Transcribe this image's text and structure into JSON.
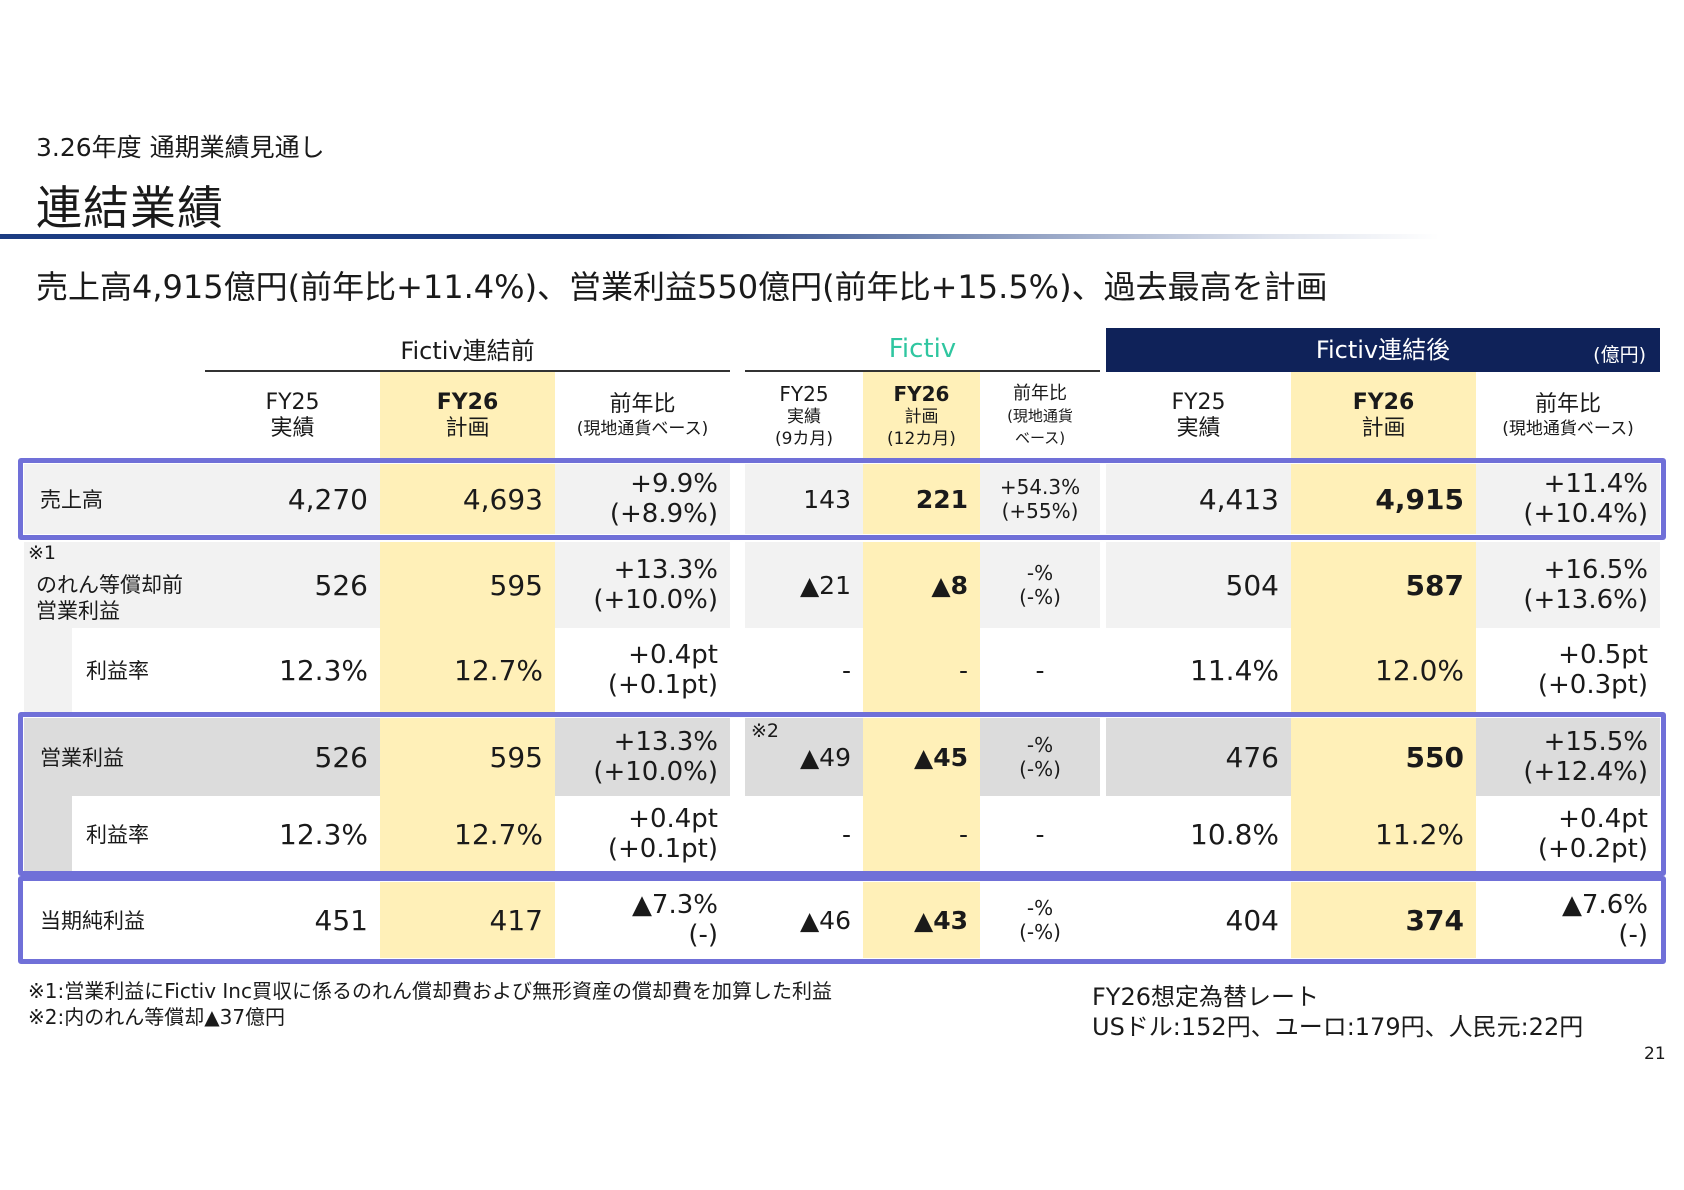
{
  "section": "3.26年度 通期業績見通し",
  "title": "連結業績",
  "headline": "売上高4,915億円(前年比+11.4%)、営業利益550億円(前年比+15.5%)、過去最高を計画",
  "groups": {
    "before": "Fictiv連結前",
    "fictiv": "Fictiv",
    "after": "Fictiv連結後",
    "unit": "(億円)"
  },
  "colors": {
    "fictiv_green": "#2fc6a0",
    "navy": "#0f2259",
    "highlight": "#fff0b8",
    "box": "#7070d8"
  },
  "headers": {
    "before": {
      "fy25": "FY25",
      "fy25_sub": "実績",
      "fy26": "FY26",
      "fy26_sub": "計画",
      "yoy": "前年比",
      "yoy_sub": "(現地通貨ベース)"
    },
    "fictiv": {
      "fy25": "FY25",
      "fy25_sub": "実績",
      "fy25_sub2": "(9カ月)",
      "fy26": "FY26",
      "fy26_sub": "計画",
      "fy26_sub2": "(12カ月)",
      "yoy": "前年比",
      "yoy_sub": "(現地通貨",
      "yoy_sub2": "ベース)"
    },
    "after": {
      "fy25": "FY25",
      "fy25_sub": "実績",
      "fy26": "FY26",
      "fy26_sub": "計画",
      "yoy": "前年比",
      "yoy_sub": "(現地通貨ベース)"
    }
  },
  "rows": {
    "sales": {
      "label": "売上高",
      "b25": "4,270",
      "b26": "4,693",
      "byoy": "+9.9%",
      "byoy2": "(+8.9%)",
      "f25": "143",
      "f26": "221",
      "fyoy": "+54.3%",
      "fyoy2": "(+55%)",
      "a25": "4,413",
      "a26": "4,915",
      "ayoy": "+11.4%",
      "ayoy2": "(+10.4%)"
    },
    "pre_op": {
      "note": "※1",
      "label": "のれん等償却前",
      "label2": "営業利益",
      "b25": "526",
      "b26": "595",
      "byoy": "+13.3%",
      "byoy2": "(+10.0%)",
      "f25": "▲21",
      "f26": "▲8",
      "fyoy": "-%",
      "fyoy2": "(-%)",
      "a25": "504",
      "a26": "587",
      "ayoy": "+16.5%",
      "ayoy2": "(+13.6%)"
    },
    "pre_margin": {
      "label": "利益率",
      "b25": "12.3%",
      "b26": "12.7%",
      "byoy": "+0.4pt",
      "byoy2": "(+0.1pt)",
      "f25": "-",
      "f26": "-",
      "fyoy": "-",
      "a25": "11.4%",
      "a26": "12.0%",
      "ayoy": "+0.5pt",
      "ayoy2": "(+0.3pt)"
    },
    "op": {
      "label": "営業利益",
      "b25": "526",
      "b26": "595",
      "byoy": "+13.3%",
      "byoy2": "(+10.0%)",
      "f_note": "※2",
      "f25": "▲49",
      "f26": "▲45",
      "fyoy": "-%",
      "fyoy2": "(-%)",
      "a25": "476",
      "a26": "550",
      "ayoy": "+15.5%",
      "ayoy2": "(+12.4%)"
    },
    "op_margin": {
      "label": "利益率",
      "b25": "12.3%",
      "b26": "12.7%",
      "byoy": "+0.4pt",
      "byoy2": "(+0.1pt)",
      "f25": "-",
      "f26": "-",
      "fyoy": "-",
      "a25": "10.8%",
      "a26": "11.2%",
      "ayoy": "+0.4pt",
      "ayoy2": "(+0.2pt)"
    },
    "net": {
      "label": "当期純利益",
      "b25": "451",
      "b26": "417",
      "byoy": "▲7.3%",
      "byoy2": "(-)",
      "f25": "▲46",
      "f26": "▲43",
      "fyoy": "-%",
      "fyoy2": "(-%)",
      "a25": "404",
      "a26": "374",
      "ayoy": "▲7.6%",
      "ayoy2": "(-)"
    }
  },
  "footnotes": {
    "n1": "※1:営業利益にFictiv Inc買収に係るのれん償却費および無形資産の償却費を加算した利益",
    "n2": "※2:内のれん等償却▲37億円"
  },
  "fx": {
    "title": "FY26想定為替レート",
    "rates": "USドル:152円、ユーロ:179円、人民元:22円"
  },
  "page_number": "21"
}
